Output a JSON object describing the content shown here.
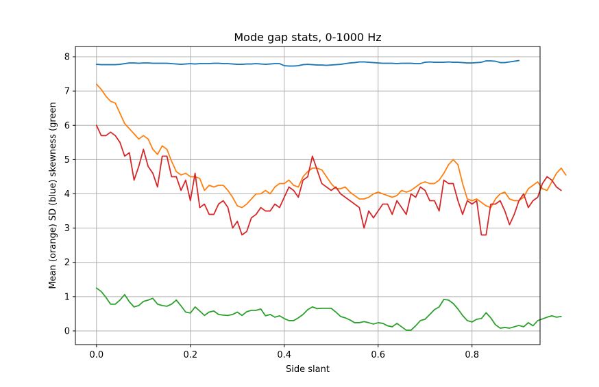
{
  "chart_data": {
    "type": "line",
    "title": "Mode gap stats, 0-1000 Hz",
    "xlabel": "Side slant",
    "ylabel": "Mean (orange) SD (blue) skewness (green",
    "xlim": [
      -0.045,
      0.945
    ],
    "ylim": [
      -0.4,
      8.3
    ],
    "xticks": [
      0.0,
      0.2,
      0.4,
      0.6,
      0.8
    ],
    "xtick_labels": [
      "0.0",
      "0.2",
      "0.4",
      "0.6",
      "0.8"
    ],
    "yticks": [
      0,
      1,
      2,
      3,
      4,
      5,
      6,
      7,
      8
    ],
    "ytick_labels": [
      "0",
      "1",
      "2",
      "3",
      "4",
      "5",
      "6",
      "7",
      "8"
    ],
    "grid": true,
    "x_start": 0.0,
    "x_step": 0.01,
    "series": [
      {
        "color": "#1f77b4",
        "values": [
          7.78,
          7.77,
          7.77,
          7.77,
          7.77,
          7.78,
          7.8,
          7.82,
          7.82,
          7.81,
          7.82,
          7.82,
          7.81,
          7.81,
          7.81,
          7.81,
          7.8,
          7.79,
          7.78,
          7.79,
          7.8,
          7.79,
          7.8,
          7.8,
          7.8,
          7.81,
          7.81,
          7.8,
          7.8,
          7.79,
          7.78,
          7.78,
          7.79,
          7.79,
          7.8,
          7.79,
          7.78,
          7.79,
          7.8,
          7.8,
          7.74,
          7.73,
          7.73,
          7.74,
          7.77,
          7.78,
          7.77,
          7.76,
          7.76,
          7.75,
          7.76,
          7.77,
          7.78,
          7.8,
          7.82,
          7.83,
          7.85,
          7.85,
          7.84,
          7.83,
          7.82,
          7.81,
          7.81,
          7.81,
          7.8,
          7.81,
          7.81,
          7.81,
          7.8,
          7.8,
          7.84,
          7.85,
          7.84,
          7.84,
          7.84,
          7.85,
          7.84,
          7.84,
          7.83,
          7.82,
          7.82,
          7.83,
          7.84,
          7.88,
          7.88,
          7.87,
          7.83,
          7.83,
          7.85,
          7.87,
          7.89
        ]
      },
      {
        "color": "#ff7f0e",
        "values": [
          7.2,
          7.05,
          6.85,
          6.7,
          6.65,
          6.35,
          6.05,
          5.9,
          5.75,
          5.6,
          5.7,
          5.6,
          5.3,
          5.15,
          5.4,
          5.3,
          4.95,
          4.65,
          4.55,
          4.6,
          4.5,
          4.5,
          4.45,
          4.1,
          4.25,
          4.2,
          4.25,
          4.25,
          4.1,
          3.9,
          3.65,
          3.6,
          3.7,
          3.85,
          4.0,
          4.0,
          4.1,
          4.0,
          4.2,
          4.3,
          4.3,
          4.4,
          4.25,
          4.2,
          4.5,
          4.65,
          4.75,
          4.75,
          4.7,
          4.5,
          4.3,
          4.15,
          4.15,
          4.2,
          4.05,
          3.95,
          3.85,
          3.85,
          3.9,
          4.0,
          4.05,
          4.0,
          3.95,
          3.9,
          3.95,
          4.1,
          4.05,
          4.1,
          4.2,
          4.3,
          4.35,
          4.3,
          4.3,
          4.4,
          4.6,
          4.85,
          5.0,
          4.85,
          4.3,
          3.85,
          3.8,
          3.85,
          3.75,
          3.65,
          3.6,
          3.85,
          4.0,
          4.05,
          3.85,
          3.8,
          3.8,
          3.9,
          4.15,
          4.25,
          4.35,
          4.15,
          4.1,
          4.35,
          4.6,
          4.75,
          4.55
        ]
      },
      {
        "color": "#d62728",
        "values": [
          6.0,
          5.7,
          5.7,
          5.8,
          5.7,
          5.5,
          5.1,
          5.2,
          4.4,
          4.8,
          5.3,
          4.8,
          4.6,
          4.2,
          5.1,
          5.1,
          4.5,
          4.5,
          4.1,
          4.4,
          3.8,
          4.6,
          3.6,
          3.7,
          3.4,
          3.4,
          3.7,
          3.8,
          3.6,
          3.0,
          3.2,
          2.8,
          2.9,
          3.3,
          3.4,
          3.6,
          3.5,
          3.5,
          3.7,
          3.6,
          3.9,
          4.2,
          4.1,
          3.9,
          4.4,
          4.5,
          5.1,
          4.7,
          4.3,
          4.2,
          4.1,
          4.2,
          4.0,
          3.9,
          3.8,
          3.7,
          3.6,
          3.0,
          3.5,
          3.3,
          3.5,
          3.7,
          3.7,
          3.4,
          3.8,
          3.6,
          3.4,
          4.0,
          3.9,
          4.2,
          4.1,
          3.8,
          3.8,
          3.5,
          4.4,
          4.3,
          4.3,
          3.8,
          3.4,
          3.8,
          3.7,
          3.8,
          2.8,
          2.8,
          3.7,
          3.7,
          3.8,
          3.5,
          3.1,
          3.4,
          3.8,
          4.0,
          3.6,
          3.8,
          3.9,
          4.3,
          4.5,
          4.4,
          4.2,
          4.1
        ]
      },
      {
        "color": "#2ca02c",
        "values": [
          1.25,
          1.15,
          0.98,
          0.78,
          0.78,
          0.9,
          1.06,
          0.85,
          0.7,
          0.74,
          0.86,
          0.9,
          0.95,
          0.78,
          0.74,
          0.72,
          0.78,
          0.9,
          0.73,
          0.55,
          0.52,
          0.7,
          0.58,
          0.45,
          0.55,
          0.58,
          0.48,
          0.46,
          0.45,
          0.48,
          0.55,
          0.45,
          0.56,
          0.6,
          0.6,
          0.64,
          0.44,
          0.48,
          0.4,
          0.44,
          0.36,
          0.3,
          0.3,
          0.38,
          0.48,
          0.62,
          0.7,
          0.65,
          0.66,
          0.66,
          0.66,
          0.55,
          0.42,
          0.38,
          0.32,
          0.24,
          0.24,
          0.27,
          0.24,
          0.2,
          0.24,
          0.22,
          0.15,
          0.12,
          0.22,
          0.12,
          0.02,
          0.02,
          0.15,
          0.3,
          0.34,
          0.48,
          0.62,
          0.7,
          0.92,
          0.9,
          0.8,
          0.64,
          0.45,
          0.3,
          0.26,
          0.34,
          0.36,
          0.53,
          0.38,
          0.18,
          0.08,
          0.1,
          0.08,
          0.12,
          0.16,
          0.12,
          0.24,
          0.15,
          0.3,
          0.35,
          0.4,
          0.44,
          0.4,
          0.42
        ]
      }
    ]
  }
}
